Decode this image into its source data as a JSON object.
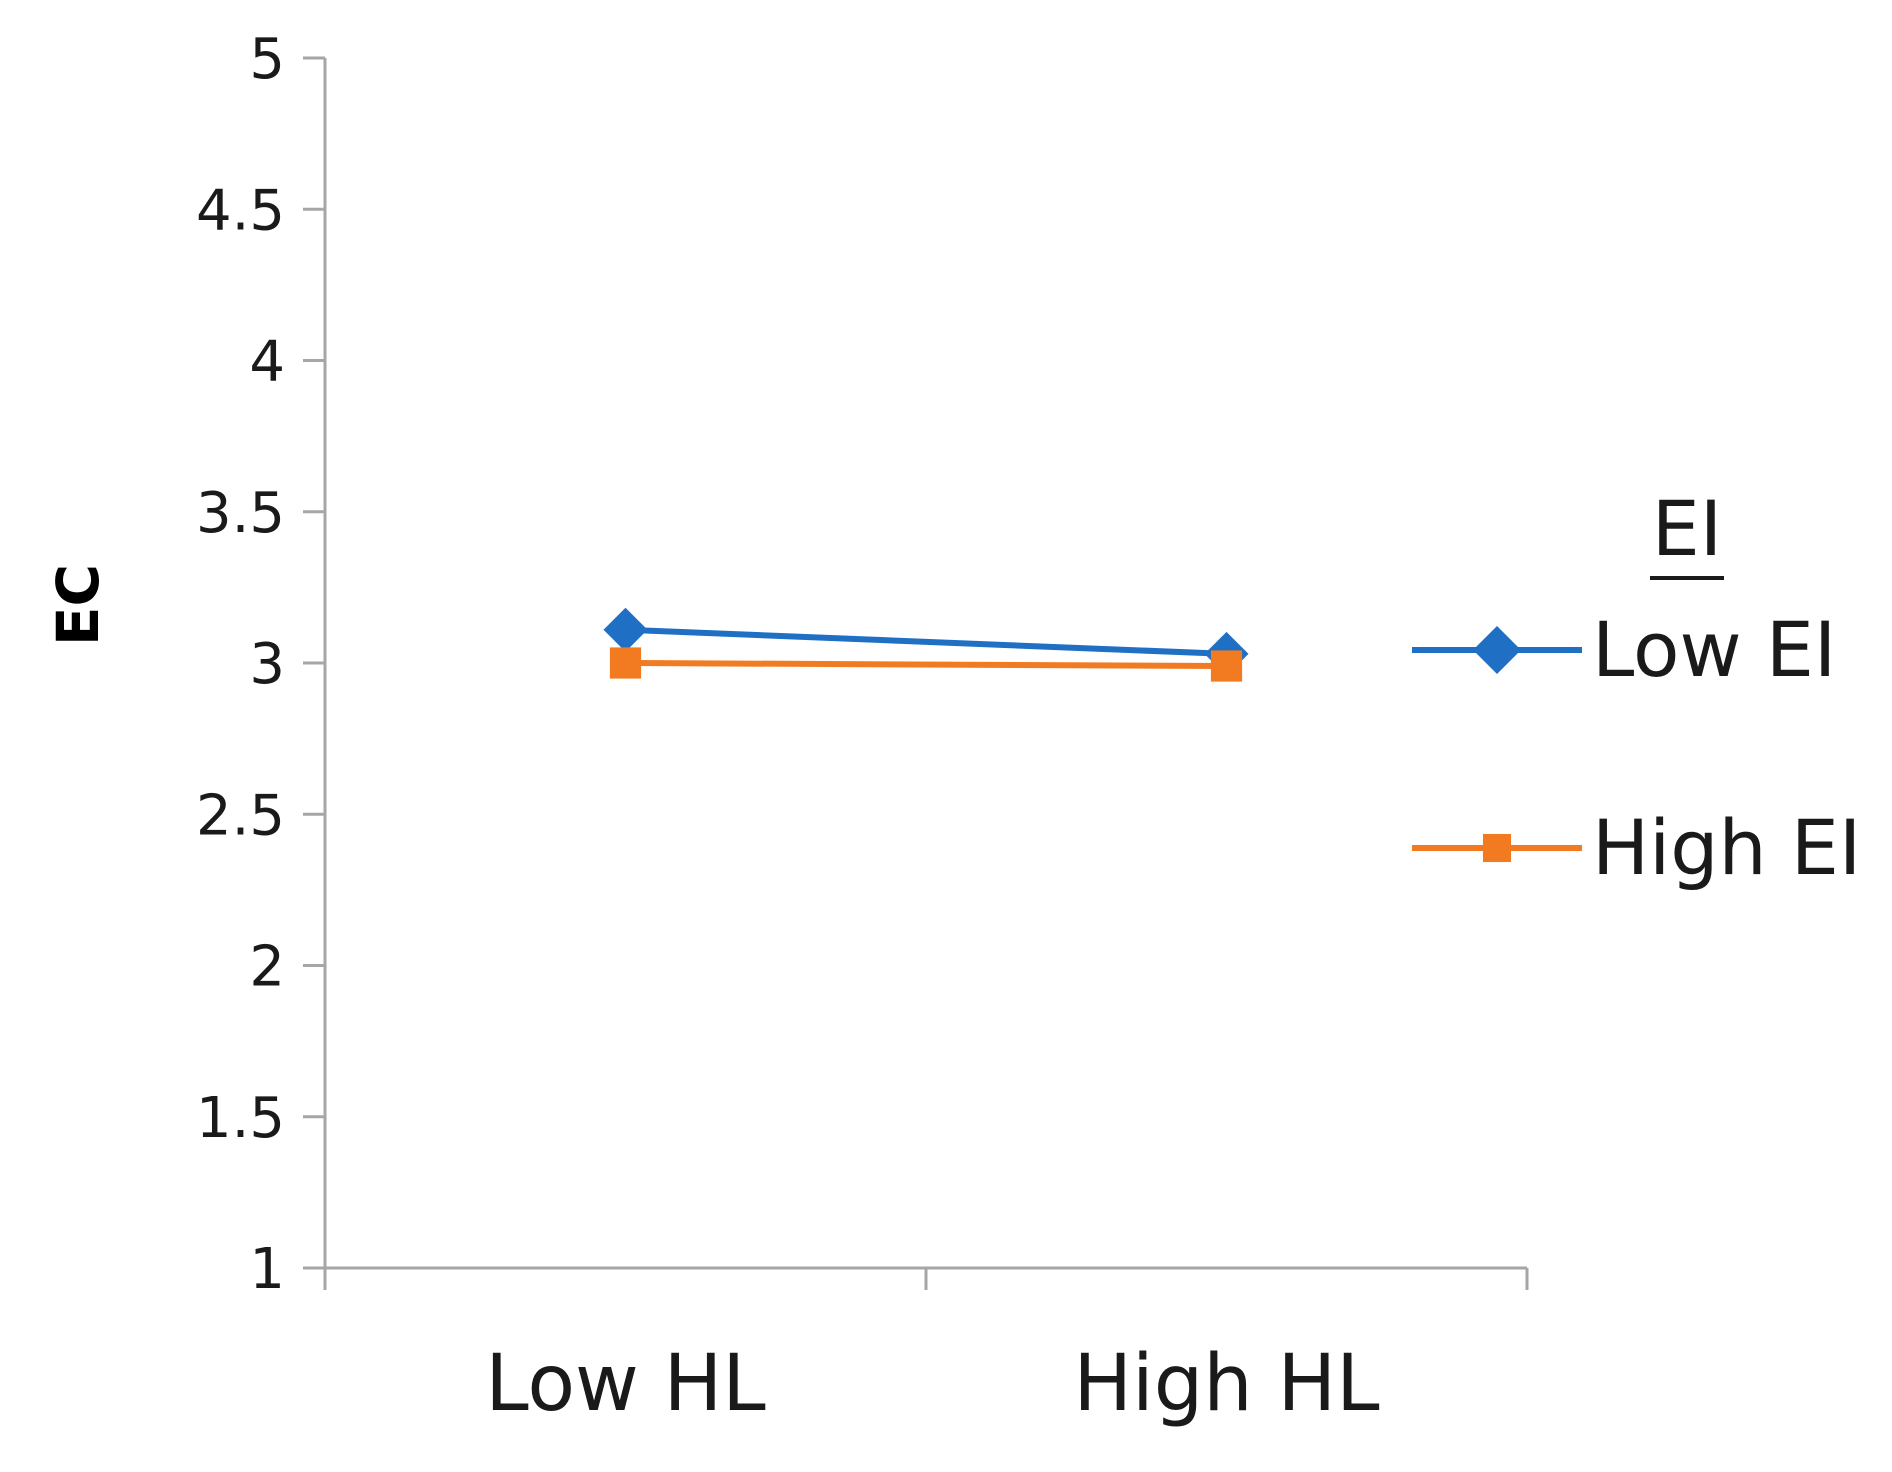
{
  "chart_data": {
    "type": "line",
    "title": "",
    "xlabel": "",
    "ylabel": "EC",
    "categories": [
      "Low HL",
      "High HL"
    ],
    "ylim": [
      1,
      5
    ],
    "yticks": [
      "1",
      "1.5",
      "2",
      "2.5",
      "3",
      "3.5",
      "4",
      "4.5",
      "5"
    ],
    "grid": false,
    "legend": {
      "title": "EI",
      "placement": "right"
    },
    "series": [
      {
        "name": "Low EI",
        "values": [
          3.11,
          3.03
        ],
        "color": "#1f6fc4",
        "marker": "diamond"
      },
      {
        "name": "High EI",
        "values": [
          3.0,
          2.99
        ],
        "color": "#f27b21",
        "marker": "square"
      }
    ]
  }
}
